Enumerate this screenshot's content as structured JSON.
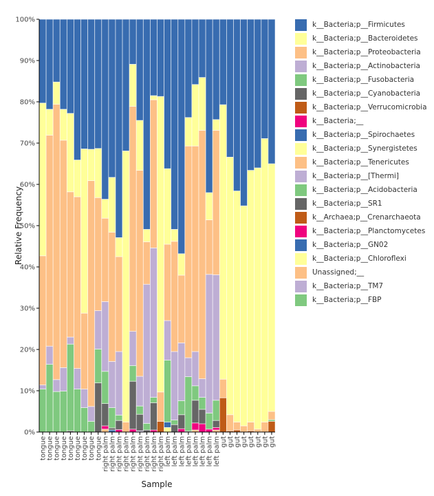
{
  "chart_data": {
    "type": "bar",
    "stacked": true,
    "xlabel": "Sample",
    "ylabel": "Relative Frequency",
    "ylim": [
      0,
      100
    ],
    "yticks": [
      "0%",
      "10%",
      "20%",
      "30%",
      "40%",
      "50%",
      "60%",
      "70%",
      "80%",
      "90%",
      "100%"
    ],
    "legend_placement": "right",
    "categories": [
      "tongue",
      "tongue",
      "tongue",
      "tongue",
      "tongue",
      "tongue",
      "tongue",
      "tongue",
      "tongue",
      "right palm",
      "right palm",
      "right palm",
      "right palm",
      "right palm",
      "right palm",
      "right palm",
      "right palm",
      "right palm",
      "left palm",
      "left palm",
      "left palm",
      "left palm",
      "left palm",
      "left palm",
      "left palm",
      "left palm",
      "gut",
      "gut",
      "gut",
      "gut",
      "gut",
      "gut",
      "gut",
      "gut"
    ],
    "series": [
      {
        "name": "k__Bacteria;p__Firmicutes",
        "color": "#386cb0",
        "values": [
          20.3,
          21.8,
          15.2,
          21.8,
          22.8,
          34.1,
          31.4,
          31.5,
          31.3,
          43.6,
          38.3,
          52.9,
          31.9,
          10.9,
          24.5,
          50.9,
          18.5,
          18.7,
          36.2,
          50.9,
          56.8,
          23.8,
          15.8,
          14.1,
          42.0,
          24.3,
          20.7,
          33.4,
          41.6,
          45.2,
          36.6,
          36.0,
          28.9,
          35.0
        ]
      },
      {
        "name": "k__Bacteria;p__Bacteroidetes",
        "color": "#ffff99",
        "values": [
          37.0,
          6.3,
          5.4,
          7.5,
          19.0,
          8.9,
          39.8,
          7.6,
          11.9,
          4.6,
          13.3,
          4.6,
          65.7,
          10.2,
          12.1,
          3.0,
          1.0,
          71.6,
          18.3,
          2.9,
          5.2,
          6.9,
          14.9,
          12.8,
          6.6,
          2.6,
          66.5,
          62.4,
          56.0,
          53.3,
          61.0,
          63.3,
          68.7,
          60.0
        ]
      },
      {
        "name": "k__Bacteria;p__Proteobacteria",
        "color": "#fdc086",
        "values": [
          31.3,
          51.1,
          66.7,
          55.1,
          35.2,
          41.6,
          18.4,
          54.7,
          27.4,
          20.2,
          31.3,
          23.0,
          2.4,
          54.5,
          49.9,
          10.3,
          35.9,
          7.1,
          18.5,
          26.7,
          16.4,
          51.3,
          49.8,
          60.2,
          13.2,
          35.0,
          4.5,
          3.9,
          1.9,
          1.5,
          2.1,
          0.7,
          2.4,
          2.0
        ]
      },
      {
        "name": "k__Bacteria;p__Actinobacteria",
        "color": "#beaed4",
        "values": [
          1.0,
          4.4,
          2.9,
          5.7,
          1.7,
          5.0,
          4.5,
          3.6,
          9.3,
          16.9,
          11.2,
          15.4,
          0,
          8.3,
          7.2,
          33.7,
          36.2,
          0,
          9.6,
          16.6,
          14.0,
          4.6,
          8.3,
          4.5,
          33.6,
          30.4,
          0,
          0,
          0,
          0,
          0,
          0,
          0,
          0
        ]
      },
      {
        "name": "k__Bacteria;p__Fusobacteria",
        "color": "#7fc97f",
        "values": [
          10.4,
          16.4,
          9.8,
          9.9,
          21.0,
          10.4,
          5.9,
          2.6,
          8.2,
          7.8,
          4.9,
          1.3,
          0,
          3.8,
          2.0,
          1.6,
          1.3,
          0,
          15.0,
          1.1,
          3.4,
          13.2,
          3.5,
          2.9,
          3.9,
          4.9,
          0,
          0,
          0,
          0,
          0,
          0,
          0,
          0.4
        ]
      },
      {
        "name": "k__Bacteria;p__Cyanobacteria",
        "color": "#666666",
        "values": [
          0,
          0,
          0,
          0,
          0.3,
          0,
          0,
          0,
          11.9,
          5.4,
          0.5,
          2.2,
          0,
          11.6,
          4.0,
          0.5,
          6.6,
          0,
          0,
          1.8,
          3.4,
          0.2,
          5.5,
          3.5,
          0,
          1.7,
          0,
          0,
          0,
          0,
          0,
          0,
          0,
          0
        ]
      },
      {
        "name": "k__Bacteria;p__Verrucomicrobia",
        "color": "#bf5b17",
        "values": [
          0,
          0,
          0,
          0,
          0,
          0,
          0,
          0,
          0,
          0,
          0,
          0,
          0,
          0,
          0,
          0,
          0,
          2.6,
          0,
          0,
          0,
          0,
          0,
          0,
          0,
          0,
          8.3,
          0.3,
          0.5,
          0,
          0.3,
          0,
          0,
          2.6
        ]
      },
      {
        "name": "k__Bacteria;__",
        "color": "#f0027f",
        "values": [
          0,
          0,
          0,
          0,
          0,
          0,
          0,
          0,
          0,
          0.8,
          0,
          0.6,
          0,
          0.7,
          0,
          0,
          0.5,
          0,
          0,
          0,
          0.8,
          0,
          1.7,
          2.0,
          0.7,
          0.6,
          0,
          0,
          0,
          0,
          0,
          0,
          0,
          0
        ]
      },
      {
        "name": "k__Bacteria;p__Spirochaetes",
        "color": "#386cb0",
        "values": [
          0,
          0,
          0,
          0,
          0,
          0,
          0,
          0,
          0,
          0,
          0.5,
          0,
          0,
          0,
          0,
          0,
          0,
          0,
          1.3,
          0,
          0,
          0,
          0,
          0,
          0,
          0,
          0,
          0,
          0,
          0,
          0,
          0,
          0,
          0
        ]
      },
      {
        "name": "k__Bacteria;p__Synergistetes",
        "color": "#ffff99"
      },
      {
        "name": "k__Bacteria;p__Tenericutes",
        "color": "#fdc086"
      },
      {
        "name": "k__Bacteria;p__[Thermi]",
        "color": "#beaed4"
      },
      {
        "name": "k__Bacteria;p__Acidobacteria",
        "color": "#7fc97f"
      },
      {
        "name": "k__Bacteria;p__SR1",
        "color": "#666666"
      },
      {
        "name": "k__Archaea;p__Crenarchaeota",
        "color": "#bf5b17"
      },
      {
        "name": "k__Bacteria;p__Planctomycetes",
        "color": "#f0027f"
      },
      {
        "name": "k__Bacteria;p__GN02",
        "color": "#386cb0"
      },
      {
        "name": "k__Bacteria;p__Chloroflexi",
        "color": "#ffff99",
        "values": [
          0,
          0,
          0,
          0,
          0,
          0,
          0,
          0,
          0,
          0,
          0,
          0,
          0,
          0,
          0,
          0,
          0,
          0,
          1.1,
          0,
          0,
          0,
          0,
          0,
          0,
          0,
          0,
          0,
          0,
          0,
          0,
          0,
          0,
          0
        ]
      },
      {
        "name": "Unassigned;__",
        "color": "#fdc086",
        "values": [
          0,
          0,
          0,
          0,
          0,
          0,
          0,
          0,
          0,
          0.7,
          0,
          0,
          0,
          0,
          0,
          0,
          0,
          0,
          0,
          0,
          0,
          0,
          0.5,
          0,
          0,
          0.5,
          0,
          0,
          0,
          0,
          0,
          0,
          0,
          0
        ]
      },
      {
        "name": "k__Bacteria;p__TM7",
        "color": "#beaed4",
        "values": [
          0,
          0,
          0,
          0,
          0,
          0,
          0,
          0,
          0,
          0,
          0,
          0,
          0,
          0,
          0.3,
          0,
          0,
          0,
          0,
          0,
          0,
          0,
          0,
          0,
          0,
          0,
          0,
          0,
          0,
          0,
          0,
          0,
          0,
          0
        ]
      },
      {
        "name": "k__Bacteria;p__FBP",
        "color": "#7fc97f"
      }
    ]
  }
}
